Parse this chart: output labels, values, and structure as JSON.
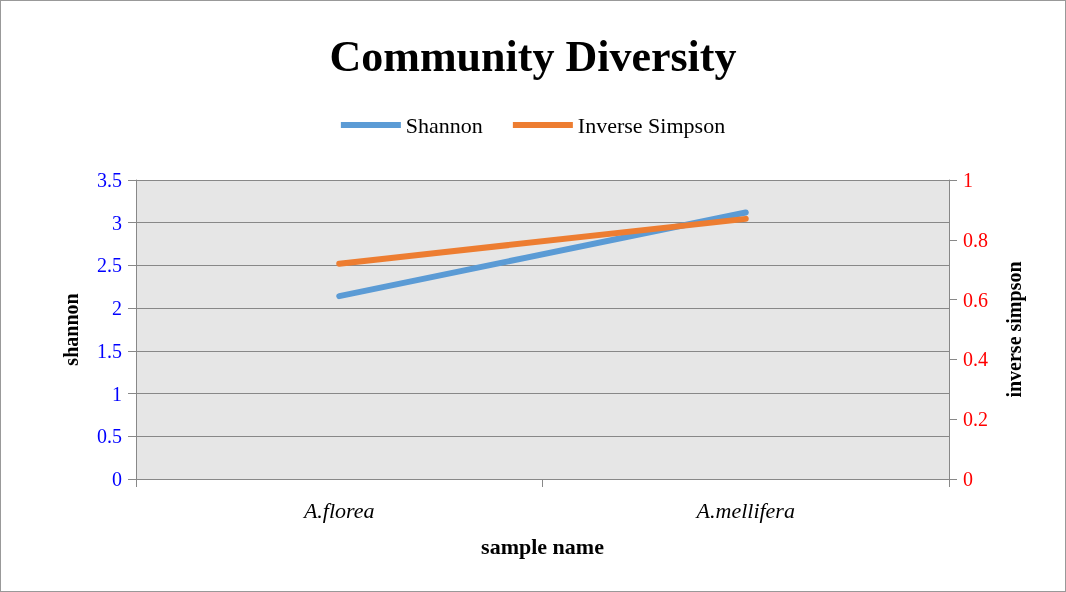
{
  "chart_data": {
    "type": "line",
    "title": "Community Diversity",
    "xlabel": "sample name",
    "ylabel": "shannon",
    "y2label": "inverse simpson",
    "categories": [
      "A.florea",
      "A.mellifera"
    ],
    "series": [
      {
        "name": "Shannon",
        "color": "#5b9bd5",
        "values": [
          2.14,
          3.12
        ]
      },
      {
        "name": "Inverse Simpson",
        "color": "#ed7d31",
        "values": [
          0.72,
          0.87
        ],
        "axis": "y2"
      }
    ],
    "ylim": [
      0,
      3.5
    ],
    "yticks": [
      0,
      0.5,
      1,
      1.5,
      2,
      2.5,
      3,
      3.5
    ],
    "y2lim": [
      0,
      1
    ],
    "y2ticks": [
      0,
      0.2,
      0.4,
      0.6,
      0.8,
      1
    ],
    "grid": "y",
    "legend": "top",
    "marker": "none",
    "line_style": "solid"
  }
}
